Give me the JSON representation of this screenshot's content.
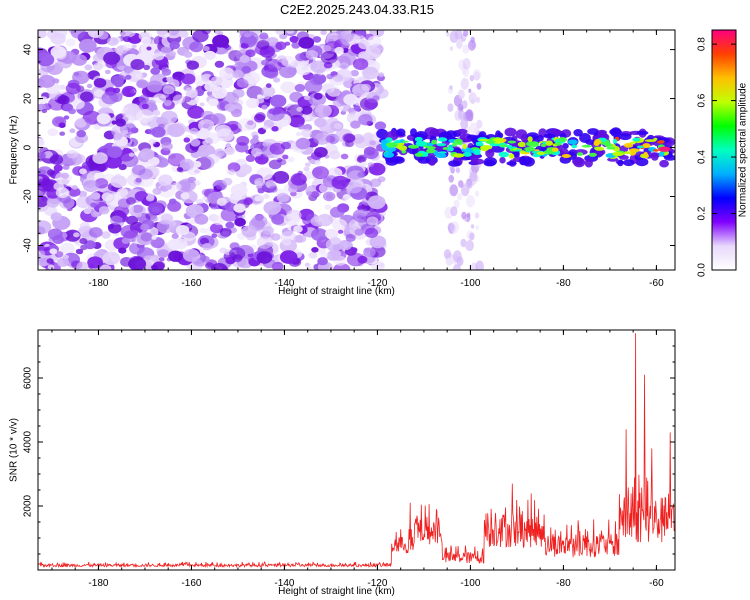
{
  "title": "C2E2.2025.243.04.33.R15",
  "chart_data": [
    {
      "type": "heatmap",
      "xlabel": "Height of straight line (km)",
      "ylabel": "Frequency (Hz)",
      "xlim": [
        -193,
        -56
      ],
      "ylim": [
        -50,
        48
      ],
      "xticks": [
        -180,
        -160,
        -140,
        -120,
        -100,
        -80,
        -60
      ],
      "yticks": [
        -40,
        -20,
        0,
        20,
        40
      ],
      "colorbar": {
        "label": "Normalized spectral amplitude",
        "range": [
          0,
          0.85
        ],
        "ticks": [
          0.0,
          0.2,
          0.4,
          0.6,
          0.8
        ],
        "stops": [
          "#ffffff",
          "#e8d8fb",
          "#8000ff",
          "#0000ff",
          "#00b0ff",
          "#00ffc0",
          "#00ff00",
          "#c0ff00",
          "#ffc000",
          "#ff4000",
          "#ff0080"
        ]
      },
      "regions": [
        {
          "name": "noise",
          "x": [
            -193,
            -119
          ],
          "freq": [
            -50,
            48
          ],
          "amplitude": 0.05
        },
        {
          "name": "signal-band",
          "x": [
            -119,
            -57
          ],
          "freq": [
            -6,
            6
          ],
          "center_freq": 0,
          "peak_amplitude": 0.85
        },
        {
          "name": "interference-column",
          "x": [
            -105,
            -98
          ],
          "freq": [
            -50,
            48
          ],
          "amplitude": 0.03
        }
      ]
    },
    {
      "type": "line",
      "xlabel": "Height of straight line (km)",
      "ylabel": "SNR (10 * v/v)",
      "xlim": [
        -193,
        -56
      ],
      "ylim": [
        0,
        7500
      ],
      "xticks": [
        -180,
        -160,
        -140,
        -120,
        -100,
        -80,
        -60
      ],
      "yticks": [
        2000,
        4000,
        6000
      ],
      "series": [
        {
          "name": "SNR",
          "color": "#f02020",
          "segments": [
            {
              "x_from": -193,
              "x_to": -117,
              "base": 100,
              "amp": 150
            },
            {
              "x_from": -117,
              "x_to": -112,
              "base": 500,
              "amp": 900
            },
            {
              "x_from": -112,
              "x_to": -106,
              "base": 800,
              "amp": 1300
            },
            {
              "x_from": -106,
              "x_to": -97,
              "base": 200,
              "amp": 600
            },
            {
              "x_from": -97,
              "x_to": -84,
              "base": 700,
              "amp": 1700
            },
            {
              "x_from": -84,
              "x_to": -68,
              "base": 400,
              "amp": 1200
            },
            {
              "x_from": -68,
              "x_to": -56,
              "base": 800,
              "amp": 2500
            }
          ],
          "peaks": [
            [
              -64.5,
              7400
            ],
            [
              -62.5,
              6100
            ],
            [
              -66.5,
              4400
            ],
            [
              -57,
              4300
            ],
            [
              -61,
              3800
            ],
            [
              -91,
              2700
            ],
            [
              -113,
              2100
            ]
          ]
        }
      ]
    }
  ]
}
